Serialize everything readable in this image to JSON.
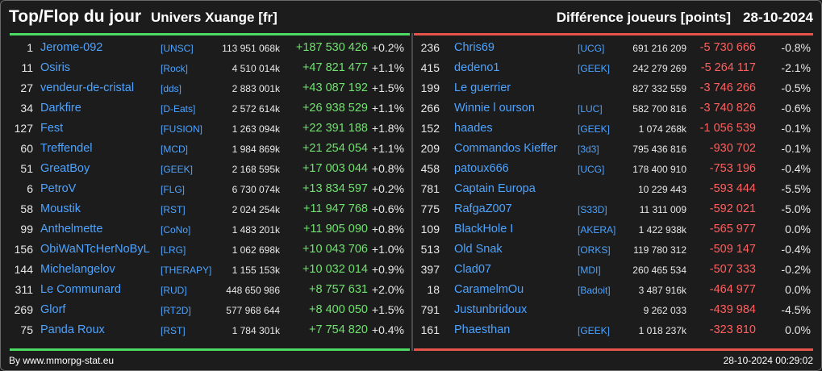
{
  "header": {
    "title": "Top/Flop du jour",
    "universe": "Univers Xuange [fr]",
    "metric": "Différence joueurs [points]",
    "date": "28-10-2024"
  },
  "top": [
    {
      "rank": "1",
      "name": "Jerome-092",
      "guild": "[UNSC]",
      "points": "113 951 068k",
      "diff": "+187 530 426",
      "pct": "+0.2%"
    },
    {
      "rank": "11",
      "name": "Osiris",
      "guild": "[Rock]",
      "points": "4 510 014k",
      "diff": "+47 821 477",
      "pct": "+1.1%"
    },
    {
      "rank": "27",
      "name": "vendeur-de-cristal",
      "guild": "[dds]",
      "points": "2 883 001k",
      "diff": "+43 087 192",
      "pct": "+1.5%"
    },
    {
      "rank": "34",
      "name": "Darkfire",
      "guild": "[D-Eats]",
      "points": "2 572 614k",
      "diff": "+26 938 529",
      "pct": "+1.1%"
    },
    {
      "rank": "127",
      "name": "Fest",
      "guild": "[FUSION]",
      "points": "1 263 094k",
      "diff": "+22 391 188",
      "pct": "+1.8%"
    },
    {
      "rank": "60",
      "name": "Treffendel",
      "guild": "[MCD]",
      "points": "1 984 869k",
      "diff": "+21 254 054",
      "pct": "+1.1%"
    },
    {
      "rank": "51",
      "name": "GreatBoy",
      "guild": "[GEEK]",
      "points": "2 168 595k",
      "diff": "+17 003 044",
      "pct": "+0.8%"
    },
    {
      "rank": "6",
      "name": "PetroV",
      "guild": "[FLG]",
      "points": "6 730 074k",
      "diff": "+13 834 597",
      "pct": "+0.2%"
    },
    {
      "rank": "58",
      "name": "Moustik",
      "guild": "[RST]",
      "points": "2 024 254k",
      "diff": "+11 947 768",
      "pct": "+0.6%"
    },
    {
      "rank": "99",
      "name": "Anthelmette",
      "guild": "[CoNo]",
      "points": "1 483 201k",
      "diff": "+11 905 090",
      "pct": "+0.8%"
    },
    {
      "rank": "156",
      "name": "ObiWaNTcHerNoByL",
      "guild": "[LRG]",
      "points": "1 062 698k",
      "diff": "+10 043 706",
      "pct": "+1.0%"
    },
    {
      "rank": "144",
      "name": "Michelangelov",
      "guild": "[THERAPY]",
      "points": "1 155 153k",
      "diff": "+10 032 014",
      "pct": "+0.9%"
    },
    {
      "rank": "311",
      "name": "Le Communard",
      "guild": "[RUD]",
      "points": "448 650 986",
      "diff": "+8 757 631",
      "pct": "+2.0%"
    },
    {
      "rank": "269",
      "name": "Glorf",
      "guild": "[RT2D]",
      "points": "577 968 644",
      "diff": "+8 400 050",
      "pct": "+1.5%"
    },
    {
      "rank": "75",
      "name": "Panda Roux",
      "guild": "[RST]",
      "points": "1 784 301k",
      "diff": "+7 754 820",
      "pct": "+0.4%"
    }
  ],
  "flop": [
    {
      "rank": "236",
      "name": "Chris69",
      "guild": "[UCG]",
      "points": "691 216 209",
      "diff": "-5 730 666",
      "pct": "-0.8%"
    },
    {
      "rank": "415",
      "name": "dedeno1",
      "guild": "[GEEK]",
      "points": "242 279 269",
      "diff": "-5 264 117",
      "pct": "-2.1%"
    },
    {
      "rank": "199",
      "name": "Le guerrier",
      "guild": "",
      "points": "827 332 559",
      "diff": "-3 746 266",
      "pct": "-0.5%"
    },
    {
      "rank": "266",
      "name": "Winnie l ourson",
      "guild": "[LUC]",
      "points": "582 700 816",
      "diff": "-3 740 826",
      "pct": "-0.6%"
    },
    {
      "rank": "152",
      "name": "haades",
      "guild": "[GEEK]",
      "points": "1 074 268k",
      "diff": "-1 056 539",
      "pct": "-0.1%"
    },
    {
      "rank": "209",
      "name": "Commandos Kieffer",
      "guild": "[3d3]",
      "points": "795 436 816",
      "diff": "-930 702",
      "pct": "-0.1%"
    },
    {
      "rank": "458",
      "name": "patoux666",
      "guild": "[UCG]",
      "points": "178 400 910",
      "diff": "-753 196",
      "pct": "-0.4%"
    },
    {
      "rank": "781",
      "name": "Captain Europa",
      "guild": "",
      "points": "10 229 443",
      "diff": "-593 444",
      "pct": "-5.5%"
    },
    {
      "rank": "775",
      "name": "RafgaZ007",
      "guild": "[S33D]",
      "points": "11 311 009",
      "diff": "-592 021",
      "pct": "-5.0%"
    },
    {
      "rank": "109",
      "name": "BlackHole I",
      "guild": "[AKERA]",
      "points": "1 422 938k",
      "diff": "-565 977",
      "pct": "0.0%"
    },
    {
      "rank": "513",
      "name": "Old Snak",
      "guild": "[ORKS]",
      "points": "119 780 312",
      "diff": "-509 147",
      "pct": "-0.4%"
    },
    {
      "rank": "397",
      "name": "Clad07",
      "guild": "[MDI]",
      "points": "260 465 534",
      "diff": "-507 333",
      "pct": "-0.2%"
    },
    {
      "rank": "18",
      "name": "CaramelmOu",
      "guild": "[Badoit]",
      "points": "3 487 916k",
      "diff": "-464 977",
      "pct": "0.0%"
    },
    {
      "rank": "791",
      "name": "Justunbridoux",
      "guild": "",
      "points": "9 262 033",
      "diff": "-439 984",
      "pct": "-4.5%"
    },
    {
      "rank": "161",
      "name": "Phaesthan",
      "guild": "[GEEK]",
      "points": "1 018 237k",
      "diff": "-323 810",
      "pct": "0.0%"
    }
  ],
  "footer": {
    "source": "By www.mmorpg-stat.eu",
    "timestamp": "28-10-2024 00:29:02"
  },
  "colors": {
    "background": "#1c1c1c",
    "name": "#4da3ff",
    "gain": "#6ee36e",
    "loss": "#ff5f5f",
    "top_bar": "#4cd964",
    "flop_bar": "#e5534b"
  }
}
